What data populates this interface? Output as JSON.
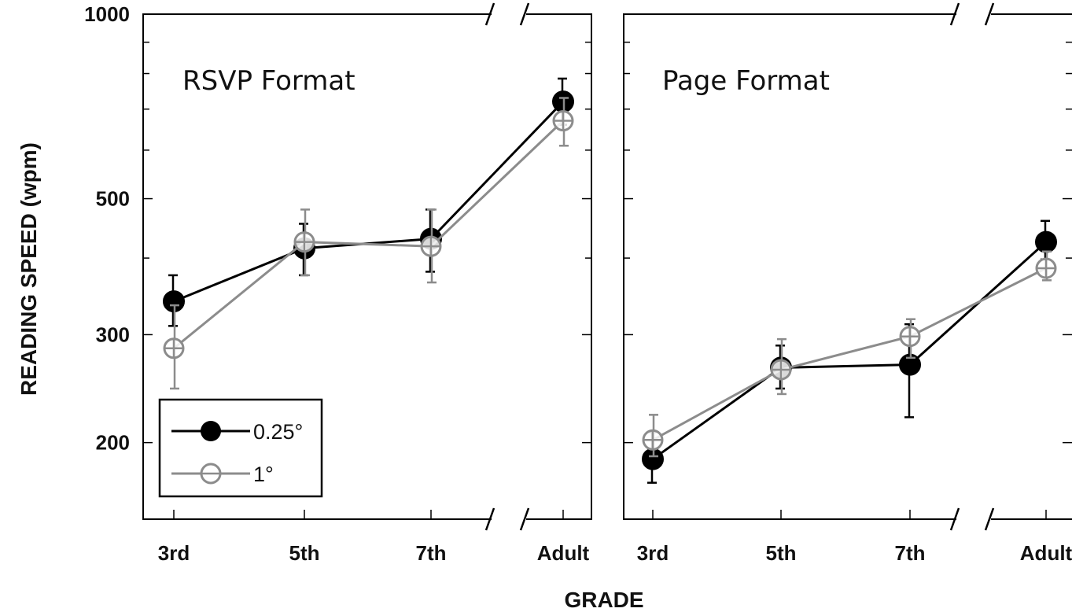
{
  "chart_data": {
    "type": "line",
    "ylabel": "READING SPEED (wpm)",
    "xlabel": "GRADE",
    "y_scale": "log",
    "ylim": [
      150,
      1000
    ],
    "y_ticks": [
      200,
      300,
      500,
      1000
    ],
    "categories": [
      "3rd",
      "5th",
      "7th",
      "Adult"
    ],
    "axis_break": "between 7th and Adult",
    "legend": {
      "placement": "bottom-left of first panel",
      "entries": [
        "0.25°",
        "1°"
      ]
    },
    "colors": {
      "0.25°": "#000000",
      "1°": "#8c8c8c"
    },
    "panels": [
      {
        "title": "RSVP Format",
        "series": [
          {
            "name": "0.25°",
            "values": [
              340,
              415,
              430,
              720
            ],
            "err_low": [
              310,
              375,
              380,
              660
            ],
            "err_high": [
              375,
              455,
              480,
              785
            ]
          },
          {
            "name": "1°",
            "values": [
              285,
              425,
              418,
              670
            ],
            "err_low": [
              245,
              375,
              365,
              610
            ],
            "err_high": [
              335,
              480,
              480,
              730
            ]
          }
        ]
      },
      {
        "title": "Page Format",
        "series": [
          {
            "name": "0.25°",
            "values": [
              188,
              265,
              268,
              425
            ],
            "err_low": [
              172,
              245,
              220,
              398
            ],
            "err_high": [
              208,
              288,
              312,
              460
            ]
          },
          {
            "name": "1°",
            "values": [
              202,
              263,
              298,
              385
            ],
            "err_low": [
              190,
              240,
              275,
              368
            ],
            "err_high": [
              222,
              295,
              318,
              410
            ]
          }
        ]
      }
    ]
  }
}
